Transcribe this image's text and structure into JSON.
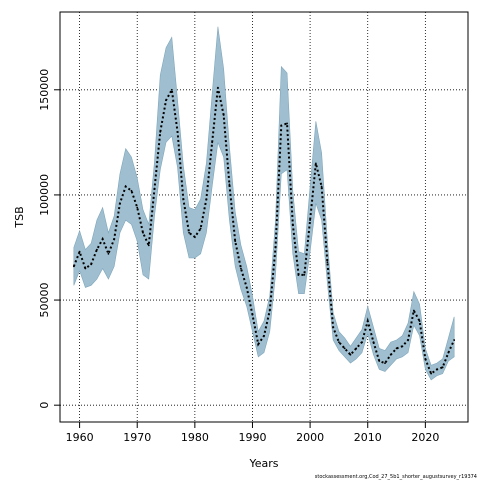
{
  "chart_data": {
    "type": "line",
    "title": "",
    "xlabel": "Years",
    "ylabel": "TSB",
    "caption": "stockassessment.org,Cod_27_5b1_shorter_augustsurvey_r19374",
    "xlim": [
      1956.6,
      2027.4
    ],
    "ylim": [
      -8000,
      187000
    ],
    "xticks": [
      1960,
      1970,
      1980,
      1990,
      2000,
      2010,
      2020
    ],
    "yticks": [
      0,
      50000,
      100000,
      150000
    ],
    "grid": true,
    "colors": {
      "band": "#9fbfd0",
      "band_edge": "#7fa6bb",
      "line": "#000000",
      "grid": "#000000"
    },
    "years": [
      1959,
      1960,
      1961,
      1962,
      1963,
      1964,
      1965,
      1966,
      1967,
      1968,
      1969,
      1970,
      1971,
      1972,
      1973,
      1974,
      1975,
      1976,
      1977,
      1978,
      1979,
      1980,
      1981,
      1982,
      1983,
      1984,
      1985,
      1986,
      1987,
      1988,
      1989,
      1990,
      1991,
      1992,
      1993,
      1994,
      1995,
      1996,
      1997,
      1998,
      1999,
      2000,
      2001,
      2002,
      2003,
      2004,
      2005,
      2006,
      2007,
      2008,
      2009,
      2010,
      2011,
      2012,
      2013,
      2014,
      2015,
      2016,
      2017,
      2018,
      2019,
      2020,
      2021,
      2022,
      2023,
      2024,
      2025
    ],
    "series": [
      {
        "role": "estimate",
        "values": [
          66000,
          73000,
          65000,
          67000,
          74000,
          79000,
          72000,
          79000,
          96000,
          104000,
          102000,
          94000,
          82000,
          76000,
          103000,
          130000,
          145000,
          150000,
          130000,
          98000,
          82000,
          80000,
          84000,
          98000,
          125000,
          151000,
          138000,
          105000,
          78000,
          65000,
          56000,
          43000,
          29000,
          33000,
          45000,
          75000,
          133000,
          134000,
          86000,
          62000,
          62000,
          88000,
          115000,
          104000,
          68000,
          37000,
          30000,
          27000,
          24000,
          27000,
          30000,
          40000,
          30000,
          21000,
          20000,
          24000,
          27000,
          28000,
          31000,
          45000,
          40000,
          22000,
          15000,
          17000,
          18000,
          25000,
          31000
        ]
      },
      {
        "role": "upper",
        "values": [
          75000,
          83000,
          74000,
          77000,
          88000,
          94000,
          82000,
          90000,
          110000,
          122000,
          118000,
          108000,
          93000,
          86000,
          116000,
          157000,
          170000,
          175000,
          145000,
          114000,
          94000,
          93000,
          98000,
          115000,
          148000,
          180000,
          160000,
          123000,
          92000,
          76000,
          66000,
          52000,
          35000,
          40000,
          52000,
          88000,
          161000,
          158000,
          102000,
          73000,
          72000,
          104000,
          135000,
          120000,
          78000,
          44000,
          35000,
          32000,
          28000,
          32000,
          36000,
          47000,
          37000,
          27000,
          26000,
          30000,
          31000,
          33000,
          39000,
          54000,
          48000,
          27000,
          19000,
          20000,
          22000,
          32000,
          42000
        ]
      },
      {
        "role": "lower",
        "values": [
          57000,
          64000,
          56000,
          57000,
          60000,
          65000,
          60000,
          66000,
          82000,
          88000,
          86000,
          78000,
          62000,
          60000,
          90000,
          112000,
          125000,
          128000,
          113000,
          82000,
          70000,
          70000,
          72000,
          82000,
          104000,
          125000,
          118000,
          88000,
          66000,
          55000,
          47000,
          35000,
          23000,
          25000,
          35000,
          62000,
          110000,
          112000,
          72000,
          53000,
          53000,
          73000,
          96000,
          88000,
          58000,
          31000,
          26000,
          23000,
          20000,
          22000,
          25000,
          34000,
          24000,
          17000,
          16000,
          19000,
          22000,
          23000,
          25000,
          38000,
          33000,
          17000,
          12000,
          14000,
          15000,
          21000,
          23000
        ]
      }
    ]
  }
}
